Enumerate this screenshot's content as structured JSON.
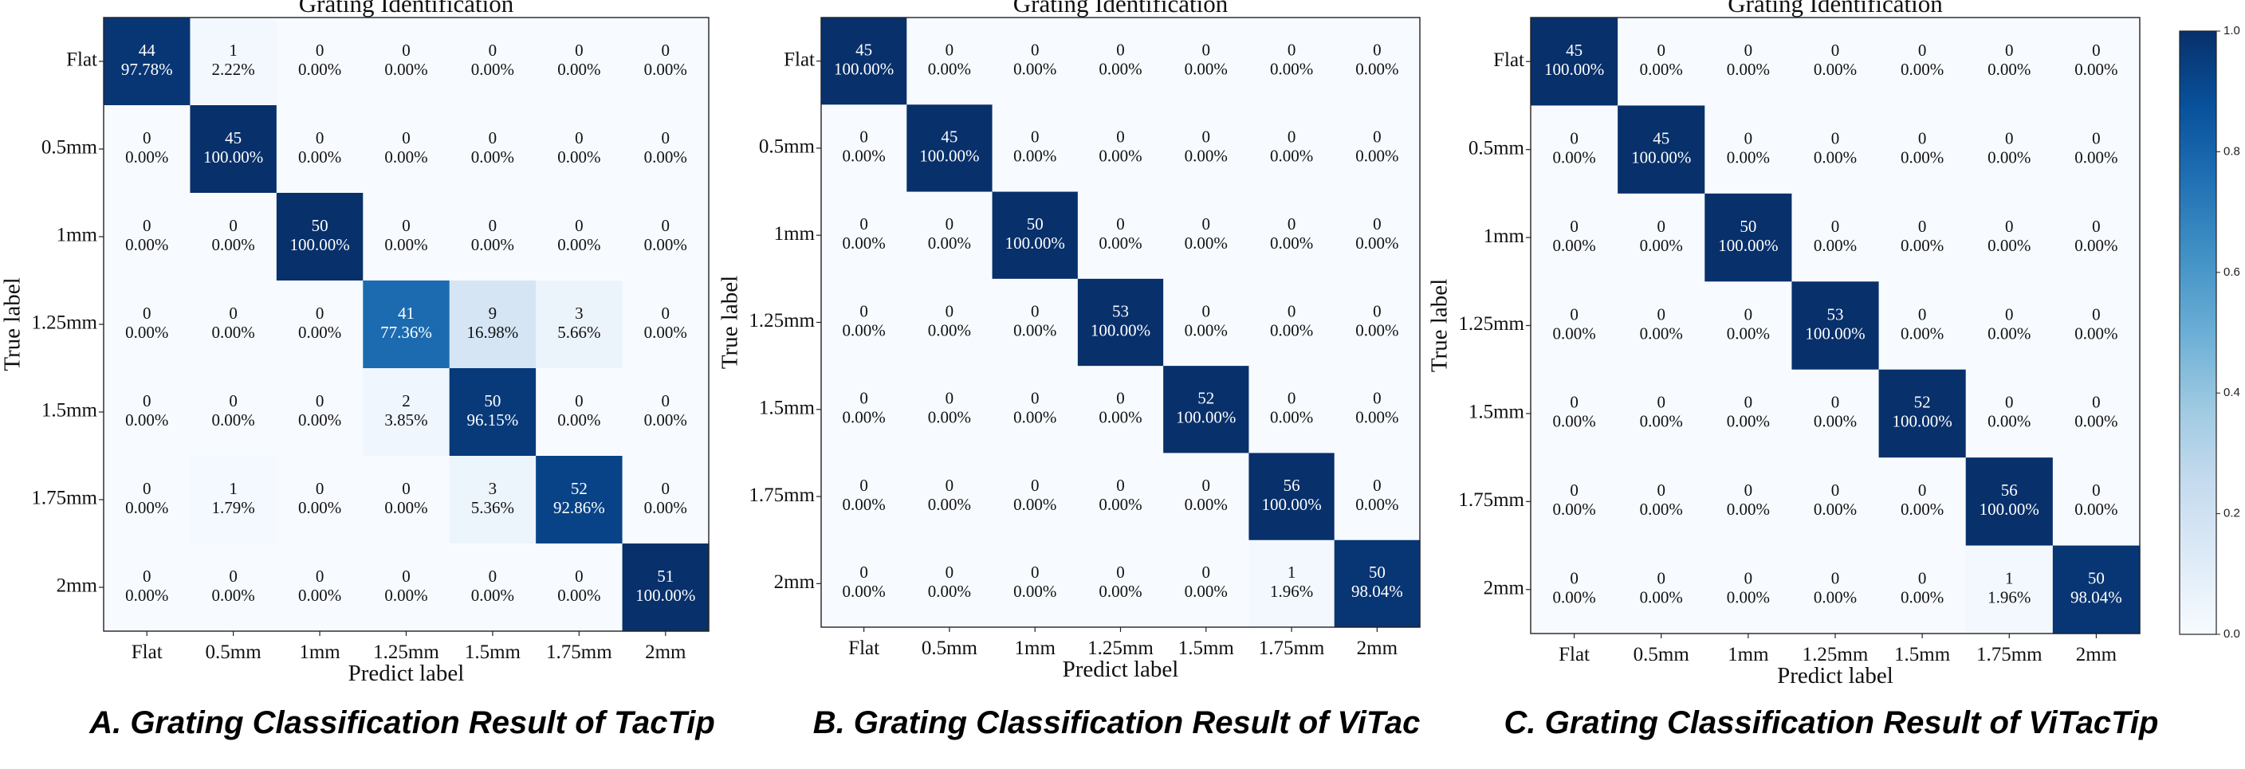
{
  "chart_data": [
    {
      "type": "heatmap",
      "title": "Grating Identification",
      "xlabel": "Predict label",
      "ylabel": "True label",
      "caption": "A. Grating Classification Result of TacTip",
      "categories": [
        "Flat",
        "0.5mm",
        "1mm",
        "1.25mm",
        "1.5mm",
        "1.75mm",
        "2mm"
      ],
      "counts": [
        [
          44,
          1,
          0,
          0,
          0,
          0,
          0
        ],
        [
          0,
          45,
          0,
          0,
          0,
          0,
          0
        ],
        [
          0,
          0,
          50,
          0,
          0,
          0,
          0
        ],
        [
          0,
          0,
          0,
          41,
          9,
          3,
          0
        ],
        [
          0,
          0,
          0,
          2,
          50,
          0,
          0
        ],
        [
          0,
          1,
          0,
          0,
          3,
          52,
          0
        ],
        [
          0,
          0,
          0,
          0,
          0,
          0,
          51
        ]
      ],
      "percents": [
        [
          "97.78%",
          "2.22%",
          "0.00%",
          "0.00%",
          "0.00%",
          "0.00%",
          "0.00%"
        ],
        [
          "0.00%",
          "100.00%",
          "0.00%",
          "0.00%",
          "0.00%",
          "0.00%",
          "0.00%"
        ],
        [
          "0.00%",
          "0.00%",
          "100.00%",
          "0.00%",
          "0.00%",
          "0.00%",
          "0.00%"
        ],
        [
          "0.00%",
          "0.00%",
          "0.00%",
          "77.36%",
          "16.98%",
          "5.66%",
          "0.00%"
        ],
        [
          "0.00%",
          "0.00%",
          "0.00%",
          "3.85%",
          "96.15%",
          "0.00%",
          "0.00%"
        ],
        [
          "0.00%",
          "1.79%",
          "0.00%",
          "0.00%",
          "5.36%",
          "92.86%",
          "0.00%"
        ],
        [
          "0.00%",
          "0.00%",
          "0.00%",
          "0.00%",
          "0.00%",
          "0.00%",
          "100.00%"
        ]
      ]
    },
    {
      "type": "heatmap",
      "title": "Grating Identification",
      "xlabel": "Predict label",
      "ylabel": "True label",
      "caption": "B. Grating Classification Result of ViTac",
      "categories": [
        "Flat",
        "0.5mm",
        "1mm",
        "1.25mm",
        "1.5mm",
        "1.75mm",
        "2mm"
      ],
      "counts": [
        [
          45,
          0,
          0,
          0,
          0,
          0,
          0
        ],
        [
          0,
          45,
          0,
          0,
          0,
          0,
          0
        ],
        [
          0,
          0,
          50,
          0,
          0,
          0,
          0
        ],
        [
          0,
          0,
          0,
          53,
          0,
          0,
          0
        ],
        [
          0,
          0,
          0,
          0,
          52,
          0,
          0
        ],
        [
          0,
          0,
          0,
          0,
          0,
          56,
          0
        ],
        [
          0,
          0,
          0,
          0,
          0,
          1,
          50
        ]
      ],
      "percents": [
        [
          "100.00%",
          "0.00%",
          "0.00%",
          "0.00%",
          "0.00%",
          "0.00%",
          "0.00%"
        ],
        [
          "0.00%",
          "100.00%",
          "0.00%",
          "0.00%",
          "0.00%",
          "0.00%",
          "0.00%"
        ],
        [
          "0.00%",
          "0.00%",
          "100.00%",
          "0.00%",
          "0.00%",
          "0.00%",
          "0.00%"
        ],
        [
          "0.00%",
          "0.00%",
          "0.00%",
          "100.00%",
          "0.00%",
          "0.00%",
          "0.00%"
        ],
        [
          "0.00%",
          "0.00%",
          "0.00%",
          "0.00%",
          "100.00%",
          "0.00%",
          "0.00%"
        ],
        [
          "0.00%",
          "0.00%",
          "0.00%",
          "0.00%",
          "0.00%",
          "100.00%",
          "0.00%"
        ],
        [
          "0.00%",
          "0.00%",
          "0.00%",
          "0.00%",
          "0.00%",
          "1.96%",
          "98.04%"
        ]
      ]
    },
    {
      "type": "heatmap",
      "title": "Grating Identification",
      "xlabel": "Predict label",
      "ylabel": "True label",
      "caption": "C. Grating Classification Result of ViTacTip",
      "categories": [
        "Flat",
        "0.5mm",
        "1mm",
        "1.25mm",
        "1.5mm",
        "1.75mm",
        "2mm"
      ],
      "counts": [
        [
          45,
          0,
          0,
          0,
          0,
          0,
          0
        ],
        [
          0,
          45,
          0,
          0,
          0,
          0,
          0
        ],
        [
          0,
          0,
          50,
          0,
          0,
          0,
          0
        ],
        [
          0,
          0,
          0,
          53,
          0,
          0,
          0
        ],
        [
          0,
          0,
          0,
          0,
          52,
          0,
          0
        ],
        [
          0,
          0,
          0,
          0,
          0,
          56,
          0
        ],
        [
          0,
          0,
          0,
          0,
          0,
          1,
          50
        ]
      ],
      "percents": [
        [
          "100.00%",
          "0.00%",
          "0.00%",
          "0.00%",
          "0.00%",
          "0.00%",
          "0.00%"
        ],
        [
          "0.00%",
          "100.00%",
          "0.00%",
          "0.00%",
          "0.00%",
          "0.00%",
          "0.00%"
        ],
        [
          "0.00%",
          "0.00%",
          "100.00%",
          "0.00%",
          "0.00%",
          "0.00%",
          "0.00%"
        ],
        [
          "0.00%",
          "0.00%",
          "0.00%",
          "100.00%",
          "0.00%",
          "0.00%",
          "0.00%"
        ],
        [
          "0.00%",
          "0.00%",
          "0.00%",
          "0.00%",
          "100.00%",
          "0.00%",
          "0.00%"
        ],
        [
          "0.00%",
          "0.00%",
          "0.00%",
          "0.00%",
          "0.00%",
          "100.00%",
          "0.00%"
        ],
        [
          "0.00%",
          "0.00%",
          "0.00%",
          "0.00%",
          "0.00%",
          "1.96%",
          "98.04%"
        ]
      ],
      "colorbar": {
        "range": [
          0,
          1.0
        ],
        "ticks": [
          "0.0",
          "0.2",
          "0.4",
          "0.6",
          "0.8",
          "1.0"
        ]
      }
    }
  ],
  "colors": {
    "colormap_light": "#f7fbff",
    "colormap_mid": "#6baed6",
    "colormap_dark": "#08306b",
    "text_dark": "#111111",
    "text_light": "#ffffff"
  }
}
